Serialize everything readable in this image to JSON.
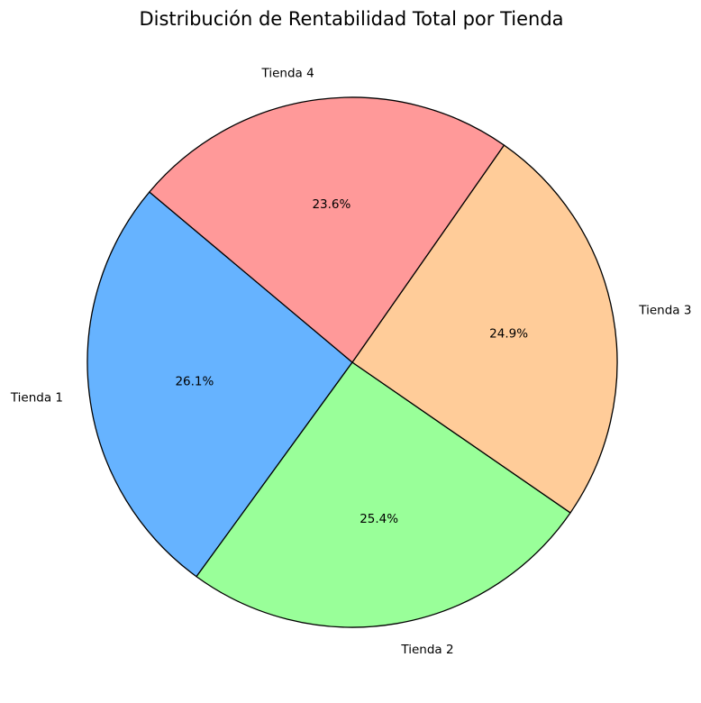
{
  "chart_data": {
    "type": "pie",
    "title": "Distribución de Rentabilidad Total por Tienda",
    "categories": [
      "Tienda 1",
      "Tienda 2",
      "Tienda 3",
      "Tienda 4"
    ],
    "values": [
      26.1,
      25.4,
      24.9,
      23.6
    ],
    "value_labels": [
      "26.1%",
      "25.4%",
      "24.9%",
      "23.6%"
    ],
    "colors": [
      "#66b3ff",
      "#99ff99",
      "#ffcc99",
      "#ff9999"
    ],
    "start_angle_deg": 140,
    "direction": "counterclockwise",
    "edge_color": "#000000",
    "legend": "none"
  }
}
